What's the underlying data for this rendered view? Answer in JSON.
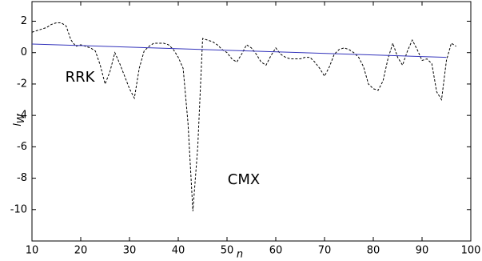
{
  "chart_data": {
    "type": "line",
    "xlabel": "n",
    "ylabel": "l",
    "ylabel_sub": "W",
    "xlim": [
      10,
      100
    ],
    "xticks": [
      10,
      20,
      30,
      40,
      50,
      60,
      70,
      80,
      90,
      100
    ],
    "ylim": [
      -12,
      3.25
    ],
    "yticks": [
      -10,
      -8,
      -6,
      -4,
      -2,
      0,
      2
    ],
    "grid": false,
    "series": [
      {
        "color": "#000000",
        "dashed": true,
        "x": [
          10,
          11,
          12,
          13,
          14,
          15,
          16,
          17,
          18,
          19,
          20,
          21,
          22,
          23,
          24,
          25,
          26,
          27,
          28,
          29,
          30,
          31,
          32,
          33,
          34,
          35,
          36,
          37,
          38,
          39,
          40,
          41,
          42,
          43,
          44,
          45,
          46,
          47,
          48,
          49,
          50,
          51,
          52,
          53,
          54,
          55,
          56,
          57,
          58,
          59,
          60,
          61,
          62,
          63,
          64,
          65,
          66,
          67,
          68,
          69,
          70,
          71,
          72,
          73,
          74,
          75,
          76,
          77,
          78,
          79,
          80,
          81,
          82,
          83,
          84,
          85,
          86,
          87,
          88,
          89,
          90,
          91,
          92,
          93,
          94,
          95,
          96,
          97
        ],
        "values": [
          1.3,
          1.4,
          1.5,
          1.6,
          1.8,
          1.9,
          1.9,
          1.7,
          0.8,
          0.4,
          0.5,
          0.4,
          0.3,
          0.1,
          -0.8,
          -2.0,
          -1.2,
          0.0,
          -0.7,
          -1.5,
          -2.3,
          -2.9,
          -1.0,
          0.1,
          0.4,
          0.6,
          0.6,
          0.6,
          0.5,
          0.2,
          -0.3,
          -1.0,
          -4.5,
          -10.1,
          -6.0,
          0.9,
          0.8,
          0.7,
          0.5,
          0.2,
          0.0,
          -0.4,
          -0.6,
          -0.1,
          0.5,
          0.3,
          -0.1,
          -0.6,
          -0.8,
          -0.2,
          0.3,
          -0.1,
          -0.3,
          -0.4,
          -0.4,
          -0.4,
          -0.3,
          -0.3,
          -0.6,
          -1.0,
          -1.5,
          -0.9,
          -0.1,
          0.2,
          0.3,
          0.2,
          0.0,
          -0.3,
          -0.9,
          -2.0,
          -2.3,
          -2.4,
          -1.8,
          -0.4,
          0.6,
          -0.3,
          -0.8,
          0.1,
          0.8,
          0.2,
          -0.5,
          -0.4,
          -0.7,
          -2.5,
          -3.0,
          -0.5,
          0.6,
          0.4
        ]
      },
      {
        "color": "#3333bb",
        "dashed": false,
        "x": [
          10,
          95
        ],
        "values": [
          0.55,
          -0.3
        ]
      }
    ],
    "annotations": [
      "RRK",
      "CMX"
    ]
  }
}
